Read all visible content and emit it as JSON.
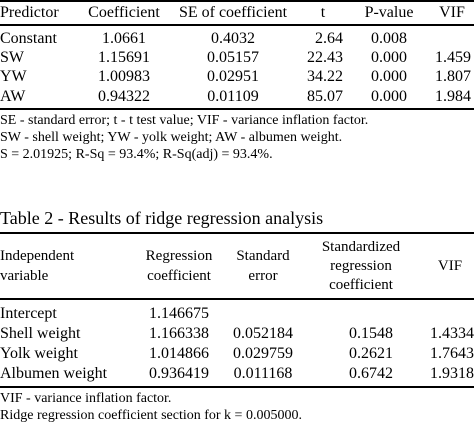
{
  "table1": {
    "headers": [
      "Predictor",
      "Coefficient",
      "SE of coefficient",
      "t",
      "P-value",
      "VIF"
    ],
    "rows": [
      [
        "Constant",
        "1.0661",
        "0.4032",
        "2.64",
        "0.008",
        ""
      ],
      [
        "SW",
        "1.15691",
        "0.05157",
        "22.43",
        "0.000",
        "1.459"
      ],
      [
        "YW",
        "1.00983",
        "0.02951",
        "34.22",
        "0.000",
        "1.807"
      ],
      [
        "AW",
        "0.94322",
        "0.01109",
        "85.07",
        "0.000",
        "1.984"
      ]
    ],
    "notes": [
      "SE - standard error; t - t test value; VIF - variance inflation factor.",
      "SW - shell weight; YW - yolk weight; AW - albumen weight.",
      "S = 2.01925; R-Sq = 93.4%; R-Sq(adj) = 93.4%."
    ]
  },
  "table2": {
    "title": "Table 2 - Results of ridge regression analysis",
    "headers": [
      [
        "Independent",
        "variable"
      ],
      [
        "Regression",
        "coefficient"
      ],
      [
        "Standard",
        "error"
      ],
      [
        "Standardized",
        "regression",
        "coefficient"
      ],
      [
        "VIF"
      ]
    ],
    "rows": [
      [
        "Intercept",
        "1.146675",
        "",
        "",
        ""
      ],
      [
        "Shell weight",
        "1.166338",
        "0.052184",
        "0.1548",
        "1.4334"
      ],
      [
        "Yolk weight",
        "1.014866",
        "0.029759",
        "0.2621",
        "1.7643"
      ],
      [
        "Albumen weight",
        "0.936419",
        "0.011168",
        "0.6742",
        "1.9318"
      ]
    ],
    "notes": [
      "VIF - variance inflation factor.",
      "Ridge regression coefficient section for k = 0.005000."
    ]
  }
}
